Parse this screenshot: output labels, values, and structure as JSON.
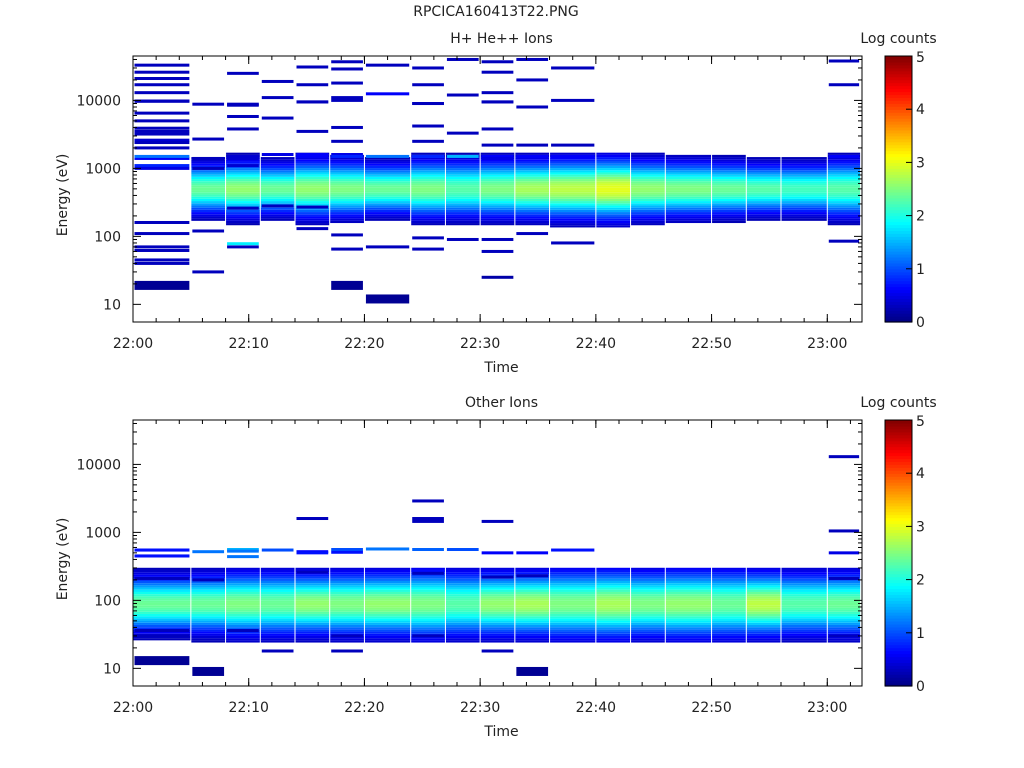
{
  "title": "RPCICA160413T22.PNG",
  "chart_data": [
    {
      "type": "heatmap",
      "title": "H+ He++ Ions",
      "xlabel": "Time",
      "ylabel": "Energy (eV)",
      "x_ticks": [
        "22:00",
        "22:10",
        "22:20",
        "22:30",
        "22:40",
        "22:50",
        "23:00"
      ],
      "x_range": [
        "22:00",
        "23:03"
      ],
      "y_scale": "log",
      "y_ticks": [
        "10",
        "100",
        "1000",
        "10000"
      ],
      "y_range": [
        5.5,
        45000
      ],
      "colorbar": {
        "label": "Log counts",
        "ticks": [
          "0",
          "1",
          "2",
          "3",
          "4",
          "5"
        ],
        "range": [
          0,
          5
        ]
      },
      "time_bins": [
        "22:00",
        "22:05",
        "22:08",
        "22:11",
        "22:14",
        "22:17",
        "22:20",
        "22:24",
        "22:27",
        "22:30",
        "22:33",
        "22:36",
        "22:40",
        "22:43",
        "22:46",
        "22:50",
        "22:53",
        "22:56",
        "23:00"
      ],
      "profile_center_eV": 480,
      "profile_peak_log_counts": [
        0,
        2.4,
        2.6,
        2.4,
        2.6,
        2.5,
        2.4,
        2.5,
        2.3,
        2.5,
        2.7,
        2.8,
        3.0,
        2.6,
        2.5,
        2.4,
        2.3,
        2.2,
        2.3
      ],
      "profile_width_decades": [
        0,
        0.22,
        0.24,
        0.22,
        0.25,
        0.24,
        0.22,
        0.25,
        0.25,
        0.25,
        0.25,
        0.26,
        0.27,
        0.25,
        0.24,
        0.23,
        0.22,
        0.22,
        0.25
      ],
      "sparse_bins": [
        [
          22.0,
          21000,
          0.3
        ],
        [
          22.0,
          17000,
          0.3
        ],
        [
          22.0,
          9800,
          0.3
        ],
        [
          22.0,
          6500,
          0.3
        ],
        [
          22.0,
          5000,
          0.3
        ],
        [
          22.0,
          3200,
          0.3
        ],
        [
          22.0,
          2600,
          0.4
        ],
        [
          22.0,
          1400,
          0.6
        ],
        [
          22.0,
          1100,
          0.8
        ],
        [
          22.0,
          160,
          0.3
        ],
        [
          22.0,
          110,
          0.3
        ],
        [
          22.0,
          62,
          0.3
        ],
        [
          22.05,
          13000,
          0.3
        ],
        [
          22.05,
          9800,
          0.3
        ],
        [
          22.05,
          3900,
          0.3
        ],
        [
          22.05,
          2000,
          0.3
        ],
        [
          22.05,
          1000,
          0.5
        ],
        [
          22.05,
          45,
          0.3
        ],
        [
          22.08,
          33000,
          0.3
        ],
        [
          22.08,
          26000,
          0.3
        ],
        [
          22.08,
          9700,
          0.3
        ],
        [
          22.08,
          3500,
          0.3
        ],
        [
          22.08,
          2400,
          0.3
        ],
        [
          22.08,
          1500,
          1.2
        ],
        [
          22.08,
          70,
          0.3
        ],
        [
          22.08,
          40,
          0.3
        ],
        [
          22.08,
          19,
          0.1
        ],
        [
          22.11,
          8800,
          0.3
        ],
        [
          22.11,
          2700,
          0.3
        ],
        [
          22.11,
          1400,
          0.3
        ],
        [
          22.11,
          1000,
          0.3
        ],
        [
          22.11,
          120,
          0.3
        ],
        [
          22.11,
          30,
          0.3
        ],
        [
          22.14,
          25000,
          0.3
        ],
        [
          22.14,
          8500,
          0.3
        ],
        [
          22.14,
          1500,
          0.4
        ],
        [
          22.14,
          1100,
          0.4
        ],
        [
          22.14,
          260,
          0.3
        ],
        [
          22.14,
          70,
          0.3
        ],
        [
          22.17,
          8800,
          0.3
        ],
        [
          22.17,
          5800,
          0.3
        ],
        [
          22.17,
          3800,
          0.3
        ],
        [
          22.17,
          1400,
          0.4
        ],
        [
          22.17,
          78,
          1.8
        ],
        [
          22.2,
          19000,
          0.3
        ],
        [
          22.2,
          11000,
          0.3
        ],
        [
          22.2,
          5500,
          0.3
        ],
        [
          22.2,
          1600,
          0.5
        ],
        [
          22.2,
          280,
          0.3
        ],
        [
          22.24,
          17000,
          0.3
        ],
        [
          22.24,
          9500,
          0.3
        ],
        [
          22.24,
          3500,
          0.3
        ],
        [
          22.24,
          1500,
          0.6
        ],
        [
          22.24,
          270,
          0.3
        ],
        [
          22.27,
          31000,
          0.3
        ],
        [
          22.27,
          9500,
          0.3
        ],
        [
          22.27,
          1600,
          0.6
        ],
        [
          22.27,
          130,
          0.3
        ],
        [
          22.3,
          29000,
          0.3
        ],
        [
          22.3,
          11000,
          0.3
        ],
        [
          22.3,
          2500,
          0.3
        ],
        [
          22.3,
          1600,
          0.5
        ],
        [
          22.3,
          105,
          0.3
        ],
        [
          22.3,
          19,
          0.1
        ],
        [
          22.33,
          37000,
          0.3
        ],
        [
          22.33,
          18000,
          0.3
        ],
        [
          22.33,
          10000,
          0.3
        ],
        [
          22.33,
          4000,
          0.3
        ],
        [
          22.33,
          1500,
          0.8
        ],
        [
          22.33,
          65,
          0.3
        ],
        [
          22.36,
          33000,
          0.3
        ],
        [
          22.36,
          12500,
          0.6
        ],
        [
          22.36,
          1500,
          1.2
        ],
        [
          22.36,
          70,
          0.3
        ],
        [
          22.36,
          12,
          0.1
        ],
        [
          22.4,
          30000,
          0.3
        ],
        [
          22.4,
          9000,
          0.3
        ],
        [
          22.4,
          4200,
          0.3
        ],
        [
          22.4,
          1500,
          1.0
        ],
        [
          22.4,
          95,
          0.3
        ],
        [
          22.43,
          17000,
          0.3
        ],
        [
          22.43,
          9000,
          0.3
        ],
        [
          22.43,
          2500,
          0.3
        ],
        [
          22.43,
          1500,
          0.8
        ],
        [
          22.43,
          65,
          0.3
        ],
        [
          22.46,
          40000,
          0.3
        ],
        [
          22.46,
          12000,
          0.3
        ],
        [
          22.46,
          3300,
          0.3
        ],
        [
          22.46,
          1500,
          1.5
        ],
        [
          22.46,
          90,
          0.3
        ],
        [
          22.5,
          37000,
          0.3
        ],
        [
          22.5,
          9500,
          0.3
        ],
        [
          22.5,
          2200,
          0.3
        ],
        [
          22.5,
          1500,
          0.6
        ],
        [
          22.5,
          60,
          0.3
        ],
        [
          22.53,
          26000,
          0.3
        ],
        [
          22.53,
          13000,
          0.3
        ],
        [
          22.53,
          9500,
          0.3
        ],
        [
          22.53,
          3800,
          0.3
        ],
        [
          22.53,
          1400,
          0.5
        ],
        [
          22.53,
          90,
          0.3
        ],
        [
          22.53,
          25,
          0.2
        ],
        [
          22.56,
          40000,
          0.3
        ],
        [
          22.56,
          20000,
          0.3
        ],
        [
          22.56,
          8000,
          0.3
        ],
        [
          22.56,
          2200,
          0.3
        ],
        [
          22.56,
          1500,
          0.6
        ],
        [
          22.56,
          110,
          0.3
        ],
        [
          22.6,
          30000,
          0.3
        ],
        [
          22.6,
          10000,
          0.3
        ],
        [
          22.6,
          2200,
          0.3
        ],
        [
          22.6,
          1500,
          0.6
        ],
        [
          22.6,
          80,
          0.3
        ],
        [
          23.0,
          38000,
          0.3
        ],
        [
          23.0,
          17000,
          0.3
        ],
        [
          23.0,
          1500,
          0.6
        ],
        [
          23.0,
          85,
          0.3
        ]
      ]
    },
    {
      "type": "heatmap",
      "title": "Other Ions",
      "xlabel": "Time",
      "ylabel": "Energy (eV)",
      "x_ticks": [
        "22:00",
        "22:10",
        "22:20",
        "22:30",
        "22:40",
        "22:50",
        "23:00"
      ],
      "x_range": [
        "22:00",
        "23:03"
      ],
      "y_scale": "log",
      "y_ticks": [
        "10",
        "100",
        "1000",
        "10000"
      ],
      "y_range": [
        5.5,
        45000
      ],
      "colorbar": {
        "label": "Log counts",
        "ticks": [
          "0",
          "1",
          "2",
          "3",
          "4",
          "5"
        ],
        "range": [
          0,
          5
        ]
      },
      "time_bins": [
        "22:00",
        "22:05",
        "22:08",
        "22:11",
        "22:14",
        "22:17",
        "22:20",
        "22:24",
        "22:27",
        "22:30",
        "22:33",
        "22:36",
        "22:40",
        "22:43",
        "22:46",
        "22:50",
        "22:53",
        "22:56",
        "23:00"
      ],
      "profile_center_eV": 85,
      "profile_peak_log_counts": [
        2.4,
        2.4,
        2.5,
        2.4,
        2.6,
        2.5,
        2.6,
        2.5,
        2.3,
        2.6,
        2.7,
        2.5,
        2.7,
        2.5,
        2.6,
        2.4,
        2.8,
        2.3,
        2.4
      ],
      "profile_width_decades": [
        0.25,
        0.26,
        0.28,
        0.28,
        0.27,
        0.28,
        0.28,
        0.3,
        0.29,
        0.28,
        0.28,
        0.3,
        0.3,
        0.29,
        0.3,
        0.3,
        0.28,
        0.28,
        0.28
      ],
      "sparse_bins": [
        [
          22.05,
          550,
          0.7
        ],
        [
          22.05,
          450,
          0.3
        ],
        [
          22.05,
          210,
          0.3
        ],
        [
          22.05,
          30,
          0.3
        ],
        [
          22.05,
          13,
          0.1
        ],
        [
          22.08,
          550,
          0.7
        ],
        [
          22.08,
          450,
          0.7
        ],
        [
          22.08,
          36,
          0.3
        ],
        [
          22.11,
          520,
          1.2
        ],
        [
          22.11,
          200,
          0.3
        ],
        [
          22.11,
          9,
          0.1
        ],
        [
          22.14,
          560,
          1.5
        ],
        [
          22.14,
          440,
          1.2
        ],
        [
          22.17,
          530,
          1.2
        ],
        [
          22.17,
          36,
          0.3
        ],
        [
          22.2,
          550,
          1.0
        ],
        [
          22.2,
          18,
          0.3
        ],
        [
          22.24,
          1600,
          0.3
        ],
        [
          22.24,
          520,
          0.6
        ],
        [
          22.27,
          500,
          0.7
        ],
        [
          22.27,
          260,
          0.3
        ],
        [
          22.3,
          510,
          0.7
        ],
        [
          22.3,
          30,
          0.3
        ],
        [
          22.33,
          560,
          1.0
        ],
        [
          22.33,
          18,
          0.3
        ],
        [
          22.36,
          570,
          1.2
        ],
        [
          22.4,
          2900,
          0.3
        ],
        [
          22.4,
          1600,
          0.3
        ],
        [
          22.4,
          560,
          1.1
        ],
        [
          22.43,
          1450,
          0.3
        ],
        [
          22.43,
          250,
          0.3
        ],
        [
          22.43,
          30,
          0.3
        ],
        [
          22.46,
          560,
          1.0
        ],
        [
          22.5,
          1450,
          0.3
        ],
        [
          22.5,
          500,
          0.6
        ],
        [
          22.53,
          220,
          0.3
        ],
        [
          22.53,
          18,
          0.3
        ],
        [
          22.56,
          500,
          0.6
        ],
        [
          22.56,
          230,
          0.3
        ],
        [
          22.56,
          9,
          0.1
        ],
        [
          22.6,
          550,
          0.7
        ],
        [
          23.0,
          13000,
          0.3
        ],
        [
          23.0,
          1050,
          0.3
        ],
        [
          23.0,
          500,
          0.5
        ],
        [
          23.0,
          210,
          0.3
        ],
        [
          23.0,
          30,
          0.3
        ]
      ]
    }
  ]
}
